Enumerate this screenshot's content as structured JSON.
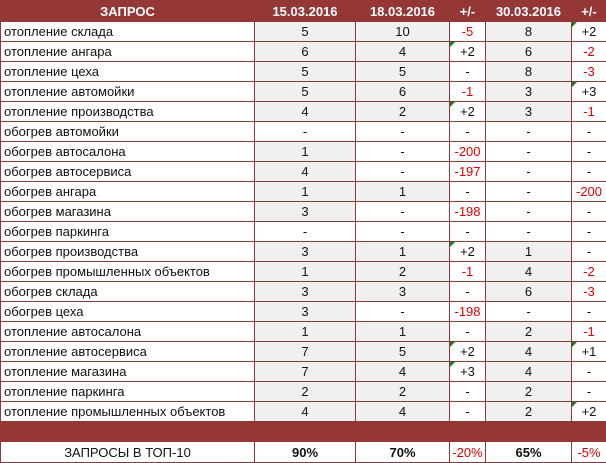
{
  "colors": {
    "header": "#953735",
    "negative": "#e00000",
    "marker": "#1f7a1f"
  },
  "header": [
    "ЗАПРОС",
    "15.03.2016",
    "18.03.2016",
    "+/-",
    "30.03.2016",
    "+/-"
  ],
  "rows": [
    [
      "отопление склада",
      "5",
      "10",
      "-5",
      "8",
      "+2"
    ],
    [
      "отопление ангара",
      "6",
      "4",
      "+2",
      "6",
      "-2"
    ],
    [
      "отопление цеха",
      "5",
      "5",
      "-",
      "8",
      "-3"
    ],
    [
      "отопление автомойки",
      "5",
      "6",
      "-1",
      "3",
      "+3"
    ],
    [
      "отопление производства",
      "4",
      "2",
      "+2",
      "3",
      "-1"
    ],
    [
      "обогрев автомойки",
      "-",
      "-",
      "-",
      "-",
      "-"
    ],
    [
      "обогрев автосалона",
      "1",
      "-",
      "-200",
      "-",
      "-"
    ],
    [
      "обогрев автосервиса",
      "4",
      "-",
      "-197",
      "-",
      "-"
    ],
    [
      "обогрев ангара",
      "1",
      "1",
      "-",
      "-",
      "-200"
    ],
    [
      "обогрев магазина",
      "3",
      "-",
      "-198",
      "-",
      "-"
    ],
    [
      "обогрев паркинга",
      "-",
      "-",
      "-",
      "-",
      "-"
    ],
    [
      "обогрев производства",
      "3",
      "1",
      "+2",
      "1",
      "-"
    ],
    [
      "обогрев промышленных объектов",
      "1",
      "2",
      "-1",
      "4",
      "-2"
    ],
    [
      "обогрев склада",
      "3",
      "3",
      "-",
      "6",
      "-3"
    ],
    [
      "обогрев цеха",
      "3",
      "-",
      "-198",
      "-",
      "-"
    ],
    [
      "отопление автосалона",
      "1",
      "1",
      "-",
      "2",
      "-1"
    ],
    [
      "отопление автосервиса",
      "7",
      "5",
      "+2",
      "4",
      "+1"
    ],
    [
      "отопление магазина",
      "7",
      "4",
      "+3",
      "4",
      "-"
    ],
    [
      "отопление паркинга",
      "2",
      "2",
      "-",
      "2",
      "-"
    ],
    [
      "отопление промышленных объектов",
      "4",
      "4",
      "-",
      "2",
      "+2"
    ]
  ],
  "footer": [
    "ЗАПРОСЫ В ТОП-10",
    "90%",
    "70%",
    "-20%",
    "65%",
    "-5%"
  ]
}
